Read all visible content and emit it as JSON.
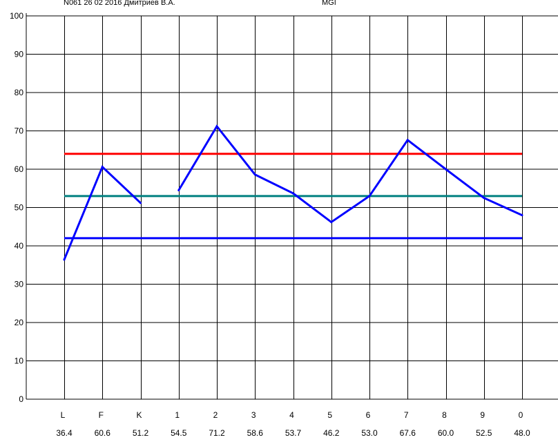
{
  "header": {
    "left_text": "N061 26 02 2016 Дмитриев В.А.",
    "right_text": "MGI"
  },
  "chart_data": {
    "type": "line",
    "ylim": [
      0,
      100
    ],
    "yticks": [
      0,
      10,
      20,
      30,
      40,
      50,
      60,
      70,
      80,
      90,
      100
    ],
    "grid": true,
    "categories": [
      "L",
      "F",
      "K",
      "1",
      "2",
      "3",
      "4",
      "5",
      "6",
      "7",
      "8",
      "9",
      "0"
    ],
    "values": [
      36.4,
      60.6,
      51.2,
      54.5,
      71.2,
      58.6,
      53.7,
      46.2,
      53.0,
      67.6,
      60.0,
      52.5,
      48.0
    ],
    "value_labels": [
      "36.4",
      "60.6",
      "51.2",
      "54.5",
      "71.2",
      "58.6",
      "53.7",
      "46.2",
      "53.0",
      "67.6",
      "60.0",
      "52.5",
      "48.0"
    ],
    "series_segments": [
      [
        0,
        2
      ],
      [
        3,
        12
      ]
    ],
    "reference_lines": [
      {
        "value": 64,
        "color": "#ff0000",
        "start_index": 0,
        "end_index": 12
      },
      {
        "value": 53,
        "color": "#008080",
        "start_index": 0,
        "end_index": 12
      },
      {
        "value": 42,
        "color": "#0000ff",
        "start_index": 0,
        "end_index": 12
      }
    ],
    "series_color": "#0000ff"
  }
}
